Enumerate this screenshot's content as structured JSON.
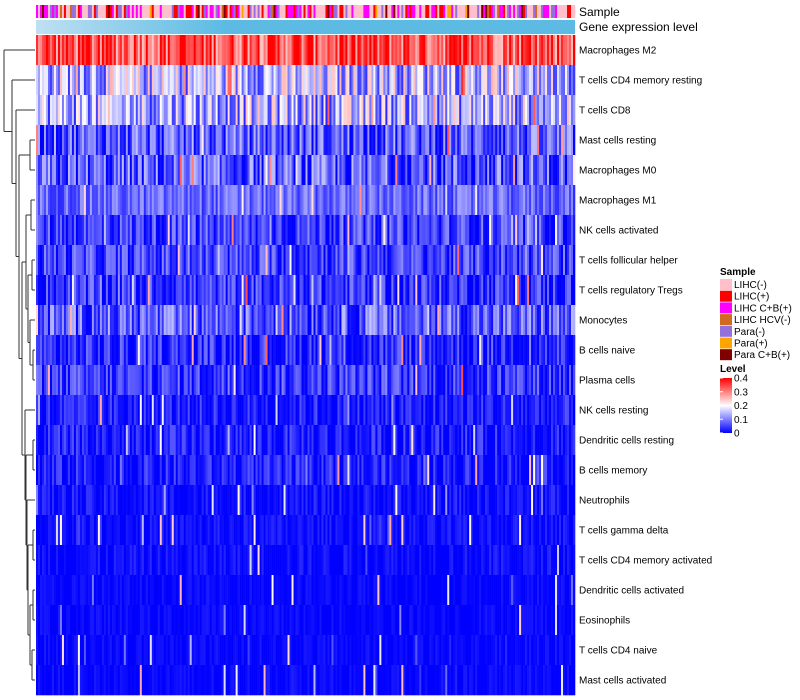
{
  "chart_data": {
    "type": "heatmap",
    "title": "",
    "annotations": [
      "Sample",
      "Gene expression level"
    ],
    "rows": [
      {
        "name": "Macrophages M2",
        "mean": 0.34,
        "spread": 0.06
      },
      {
        "name": "T cells CD4 memory resting",
        "mean": 0.15,
        "spread": 0.07
      },
      {
        "name": "T cells CD8",
        "mean": 0.14,
        "spread": 0.07
      },
      {
        "name": "Mast cells resting",
        "mean": 0.07,
        "spread": 0.05
      },
      {
        "name": "Macrophages M0",
        "mean": 0.06,
        "spread": 0.06
      },
      {
        "name": "Macrophages M1",
        "mean": 0.08,
        "spread": 0.03
      },
      {
        "name": "NK cells activated",
        "mean": 0.05,
        "spread": 0.04
      },
      {
        "name": "T cells follicular helper",
        "mean": 0.05,
        "spread": 0.04
      },
      {
        "name": "T cells regulatory  Tregs",
        "mean": 0.04,
        "spread": 0.04
      },
      {
        "name": "Monocytes",
        "mean": 0.07,
        "spread": 0.05
      },
      {
        "name": "B cells naive",
        "mean": 0.03,
        "spread": 0.04
      },
      {
        "name": "Plasma cells",
        "mean": 0.04,
        "spread": 0.04
      },
      {
        "name": "NK cells resting",
        "mean": 0.02,
        "spread": 0.03
      },
      {
        "name": "Dendritic cells resting",
        "mean": 0.02,
        "spread": 0.03
      },
      {
        "name": "B cells memory",
        "mean": 0.02,
        "spread": 0.03
      },
      {
        "name": "Neutrophils",
        "mean": 0.01,
        "spread": 0.02
      },
      {
        "name": "T cells gamma delta",
        "mean": 0.01,
        "spread": 0.015
      },
      {
        "name": "T cells CD4 memory activated",
        "mean": 0.01,
        "spread": 0.015
      },
      {
        "name": "Dendritic cells activated",
        "mean": 0.005,
        "spread": 0.01
      },
      {
        "name": "Eosinophils",
        "mean": 0.005,
        "spread": 0.01
      },
      {
        "name": "T cells CD4 naive",
        "mean": 0.005,
        "spread": 0.01
      },
      {
        "name": "Mast cells activated",
        "mean": 0.005,
        "spread": 0.01
      }
    ],
    "n_samples": 270,
    "legend_sample": {
      "title": "Sample",
      "items": [
        {
          "label": "LIHC(-)",
          "color": "#FFC0CB"
        },
        {
          "label": "LIHC(+)",
          "color": "#FF0000"
        },
        {
          "label": "LIHC C+B(+)",
          "color": "#FF00FF"
        },
        {
          "label": "LIHC HCV(-)",
          "color": "#D2691E"
        },
        {
          "label": "Para(-)",
          "color": "#9370DB"
        },
        {
          "label": "Para(+)",
          "color": "#FFA500"
        },
        {
          "label": "Para C+B(+)",
          "color": "#800000"
        }
      ],
      "weights": [
        0.42,
        0.16,
        0.2,
        0.02,
        0.12,
        0.03,
        0.05
      ]
    },
    "legend_level": {
      "title": "Level",
      "range": [
        0,
        0.4
      ],
      "ticks": [
        "0.4",
        "0.3",
        "0.2",
        "0.1",
        "0"
      ],
      "colors": [
        "#0000FF",
        "#FFFFFF",
        "#FF0000"
      ]
    },
    "expression_band_colors": [
      "#BFE0F2",
      "#5DBBE3"
    ]
  }
}
